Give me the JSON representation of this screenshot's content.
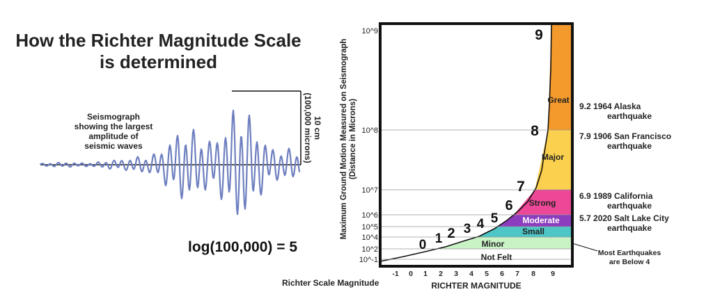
{
  "title_line1": "How the Richter Magnitude Scale",
  "title_line2": "is determined",
  "seismograph_label": [
    "Seismograph",
    "showing the largest amplitude of",
    "seismic waves"
  ],
  "amplitude_label": [
    "10 cm",
    "(100,000 microns)"
  ],
  "formula": "log(100,000) = 5",
  "richter_scale_magnitude_label": "Richter Scale Magnitude",
  "y_axis_title": [
    "Maximum Ground Motion Measured on Seismograph",
    "(Distance in Microns)"
  ],
  "x_axis_title": "RICHTER MAGNITUDE",
  "y_ticks": [
    {
      "label": "10^9",
      "value": 9
    },
    {
      "label": "10^8",
      "value": 8
    },
    {
      "label": "10^7",
      "value": 7
    },
    {
      "label": "10^6",
      "value": 6
    },
    {
      "label": "10^5",
      "value": 5
    },
    {
      "label": "10^4",
      "value": 4
    },
    {
      "label": "10^2",
      "value": 2
    },
    {
      "label": "10^-1",
      "value": -1
    }
  ],
  "x_ticks": [
    "-1",
    "0",
    "1",
    "2",
    "3",
    "4",
    "5",
    "6",
    "7",
    "8",
    "9"
  ],
  "curve_numbers": [
    "0",
    "1",
    "2",
    "3",
    "4",
    "5",
    "6",
    "7",
    "8",
    "9"
  ],
  "categories": [
    {
      "name": "Great",
      "color": "#f49a2c"
    },
    {
      "name": "Major",
      "color": "#fbd04e"
    },
    {
      "name": "Strong",
      "color": "#ec4897"
    },
    {
      "name": "Moderate",
      "color": "#8c3dbe"
    },
    {
      "name": "Small",
      "color": "#4ec6c6"
    },
    {
      "name": "Minor",
      "color": "#c9f2c5"
    },
    {
      "name": "Not Felt",
      "color": "#ffffff"
    }
  ],
  "earthquakes": [
    {
      "line1": "9.2 1964 Alaska",
      "line2": "earthquake"
    },
    {
      "line1": "7.9 1906 San Francisco",
      "line2": "earthquake"
    },
    {
      "line1": "6.9 1989 California",
      "line2": "earthquake"
    },
    {
      "line1": "5.7 2020 Salt Lake City",
      "line2": "earthquake"
    }
  ],
  "most_earthquakes_note": [
    "Most Earthquakes",
    "are Below 4"
  ],
  "wave_color": "#6e7fbf"
}
